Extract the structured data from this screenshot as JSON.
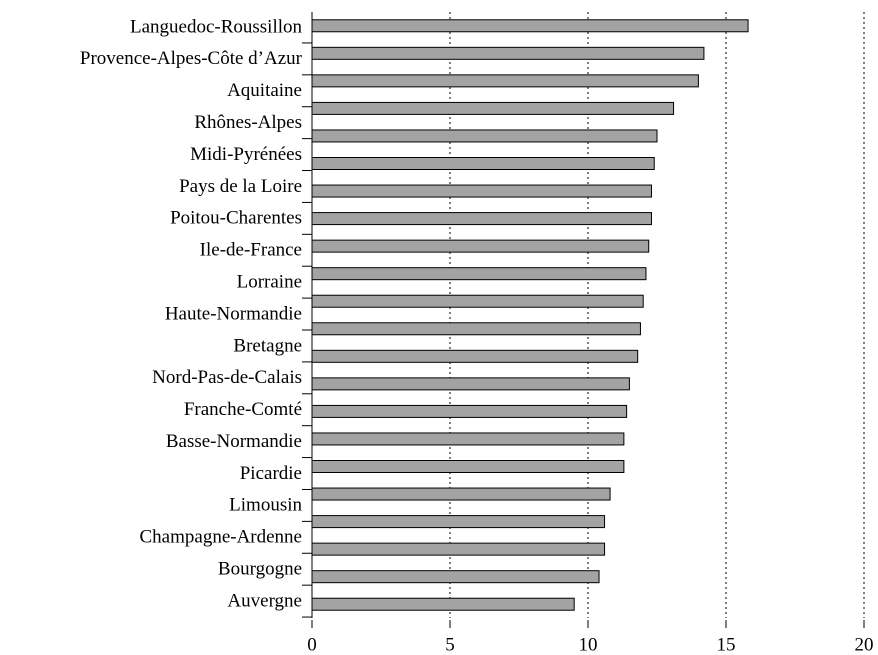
{
  "chart_data": {
    "type": "bar",
    "orientation": "horizontal",
    "categories": [
      "Languedoc-Roussillon",
      "Provence-Alpes-Côte d’Azur",
      "Aquitaine",
      null,
      "Rhônes-Alpes",
      "Midi-Pyrénées",
      "Pays de la Loire",
      "Poitou-Charentes",
      "Ile-de-France",
      null,
      "Lorraine",
      "Haute-Normandie",
      "Bretagne",
      "Nord-Pas-de-Calais",
      "Franche-Comté",
      null,
      "Basse-Normandie",
      "Picardie",
      "Limousin",
      "Champagne-Ardenne",
      "Bourgogne",
      "Auvergne"
    ],
    "values": [
      15.8,
      14.2,
      14.0,
      13.1,
      12.5,
      12.4,
      12.3,
      12.3,
      12.2,
      12.1,
      12.0,
      11.9,
      11.8,
      11.5,
      11.4,
      11.3,
      11.3,
      10.8,
      10.6,
      10.6,
      10.4,
      9.5
    ],
    "color": "#a3a3a3",
    "xlim": [
      0,
      20
    ],
    "xticks": [
      0,
      5,
      10,
      15,
      20
    ],
    "grid": true
  }
}
